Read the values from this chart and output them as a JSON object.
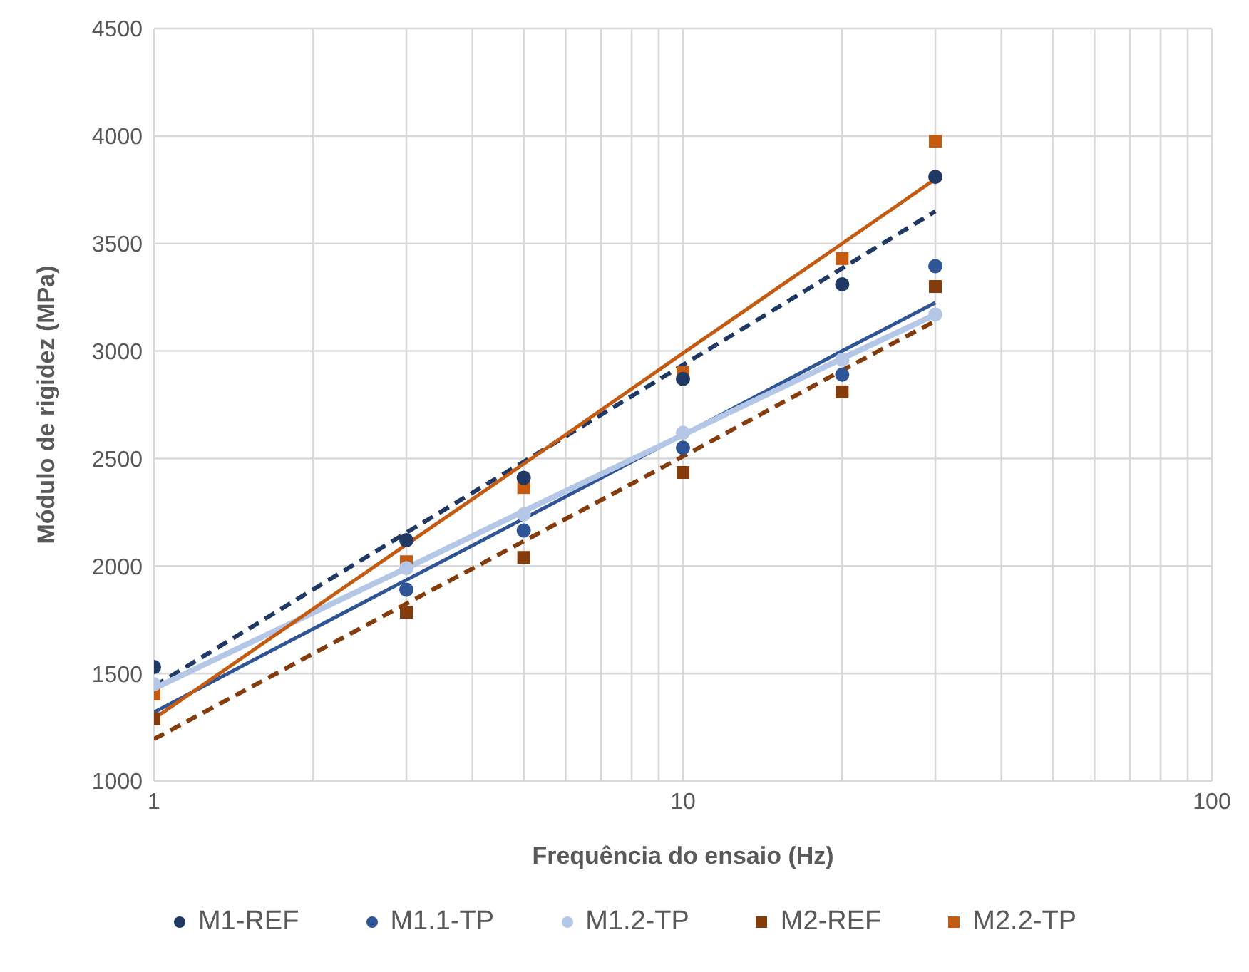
{
  "chart_data": {
    "type": "scatter",
    "xlabel": "Frequência do ensaio (Hz)",
    "ylabel": "Módulo de rigidez (MPa)",
    "log": "x",
    "xlim": [
      1,
      100
    ],
    "xticks": [
      1,
      {
        "value": 2,
        "label": null
      },
      {
        "value": 3,
        "label": null
      },
      {
        "value": 4,
        "label": null
      },
      {
        "value": 5,
        "label": null
      },
      {
        "value": 6,
        "label": null
      },
      {
        "value": 7,
        "label": null
      },
      {
        "value": 8,
        "label": null
      },
      {
        "value": 9,
        "label": null
      },
      10,
      {
        "value": 20,
        "label": null
      },
      {
        "value": 30,
        "label": null
      },
      {
        "value": 40,
        "label": null
      },
      {
        "value": 50,
        "label": null
      },
      {
        "value": 60,
        "label": null
      },
      {
        "value": 70,
        "label": null
      },
      {
        "value": 80,
        "label": null
      },
      {
        "value": 90,
        "label": null
      },
      100
    ],
    "ylim": [
      1000,
      4500
    ],
    "yticks": [
      1000,
      1500,
      2000,
      2500,
      3000,
      3500,
      4000,
      4500
    ],
    "grid": true,
    "legend": "bottom",
    "x": [
      1,
      3,
      5,
      10,
      20,
      30
    ],
    "series": [
      {
        "type": "line",
        "color": "#1f3864",
        "values": [
          1440,
          2155,
          2485,
          2935,
          3385,
          3650
        ],
        "line_style": "dashed",
        "marker": "none"
      },
      {
        "type": "line",
        "color": "#2f5597",
        "values": [
          1320,
          1935,
          2220,
          2610,
          3000,
          3225
        ],
        "line_style": "solid",
        "marker": "none"
      },
      {
        "type": "line",
        "color": "#b4c7e7",
        "values": [
          1430,
          1990,
          2255,
          2610,
          2965,
          3170
        ],
        "line_style": "solid",
        "marker": "none"
      },
      {
        "type": "line",
        "color": "#843c0c",
        "values": [
          1195,
          1825,
          2115,
          2510,
          2910,
          3140
        ],
        "line_style": "dashed",
        "marker": "none"
      },
      {
        "type": "line",
        "color": "#c55a11",
        "values": [
          1290,
          2100,
          2475,
          2990,
          3500,
          3800
        ],
        "line_style": "solid",
        "marker": "none"
      },
      {
        "name": "M1-REF",
        "color": "#1f3864",
        "marker": "circle",
        "values": [
          1530,
          2120,
          2410,
          2870,
          3310,
          3810
        ]
      },
      {
        "name": "M1.1-TP",
        "color": "#2f5597",
        "marker": "circle",
        "values": [
          null,
          1890,
          2165,
          2550,
          2890,
          3395
        ]
      },
      {
        "name": "M1.2-TP",
        "color": "#b4c7e7",
        "marker": "circle",
        "values": [
          1450,
          1990,
          2240,
          2620,
          2960,
          3170
        ]
      },
      {
        "name": "M2-REF",
        "color": "#843c0c",
        "marker": "square",
        "values": [
          1290,
          1785,
          2040,
          2435,
          2810,
          3300
        ]
      },
      {
        "name": "M2.2-TP",
        "color": "#c55a11",
        "marker": "square",
        "values": [
          1405,
          2020,
          2365,
          2900,
          3430,
          3975
        ]
      }
    ]
  }
}
